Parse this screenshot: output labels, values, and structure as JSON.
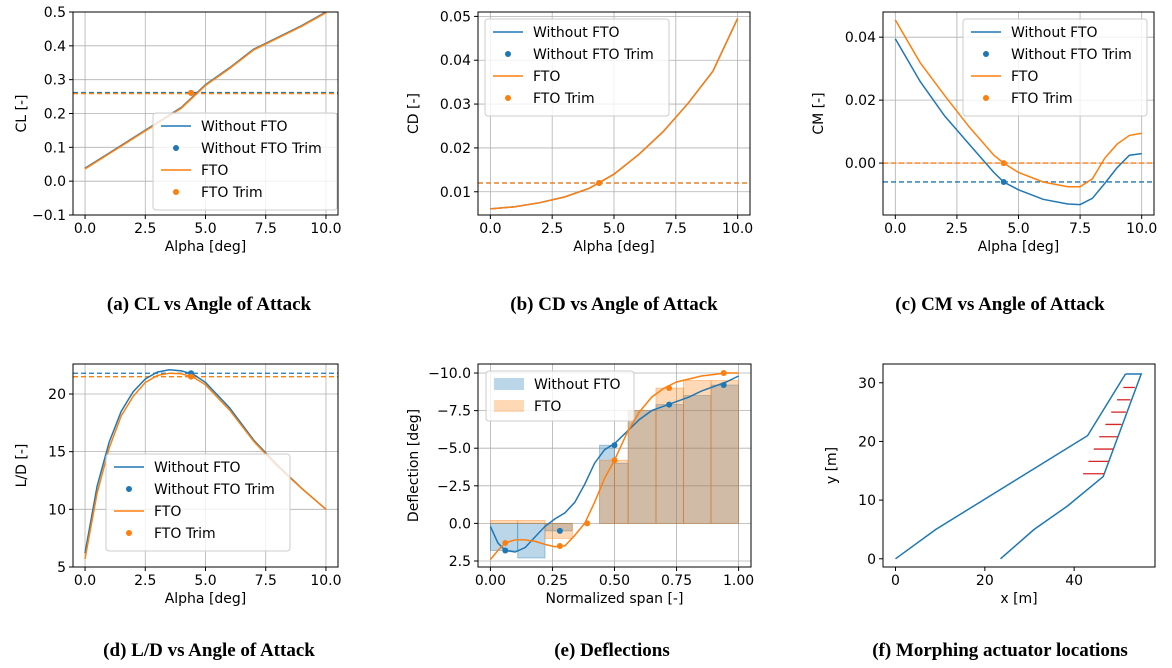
{
  "colors": {
    "without_fto": "#1f77b4",
    "fto": "#ff7f0e",
    "grid": "#b0b0b0",
    "actuator": "#d62728"
  },
  "captions": [
    "(a) CL vs Angle of Attack",
    "(b) CD vs Angle of Attack",
    "(c) CM vs Angle of Attack",
    "(d) L/D vs Angle of Attack",
    "(e) Deflections",
    "(f) Morphing actuator locations"
  ],
  "chart_data": [
    {
      "id": "a",
      "type": "line",
      "xlabel": "Alpha [deg]",
      "ylabel": "CL [-]",
      "xlim": [
        -0.5,
        10.5
      ],
      "ylim": [
        -0.1,
        0.5
      ],
      "xticks": [
        "0.0",
        "2.5",
        "5.0",
        "7.5",
        "10.0"
      ],
      "yticks": [
        "−0.1",
        "0.0",
        "0.1",
        "0.2",
        "0.3",
        "0.4",
        "0.5"
      ],
      "grid": true,
      "legend": "bottom-center",
      "series": [
        {
          "name": "Without FTO",
          "x": [
            0,
            1,
            2,
            3,
            4,
            5,
            6,
            7,
            8,
            9,
            10
          ],
          "y": [
            0.038,
            0.083,
            0.128,
            0.173,
            0.218,
            0.285,
            0.335,
            0.39,
            0.425,
            0.46,
            0.5
          ]
        },
        {
          "name": "FTO",
          "x": [
            0,
            1,
            2,
            3,
            4,
            5,
            6,
            7,
            8,
            9,
            10
          ],
          "y": [
            0.036,
            0.081,
            0.126,
            0.171,
            0.216,
            0.283,
            0.333,
            0.388,
            0.423,
            0.458,
            0.498
          ]
        }
      ],
      "trim_points": [
        {
          "name": "Without FTO Trim",
          "x": 4.4,
          "y": 0.261
        },
        {
          "name": "FTO Trim",
          "x": 4.4,
          "y": 0.261
        }
      ],
      "reference_lines": [
        {
          "series": "Without FTO",
          "y": 0.262
        },
        {
          "series": "FTO",
          "y": 0.259
        }
      ]
    },
    {
      "id": "b",
      "type": "line",
      "xlabel": "Alpha [deg]",
      "ylabel": "CD [-]",
      "xlim": [
        -0.5,
        10.5
      ],
      "ylim": [
        0.0047,
        0.051
      ],
      "xticks": [
        "0.0",
        "2.5",
        "5.0",
        "7.5",
        "10.0"
      ],
      "yticks": [
        "0.01",
        "0.02",
        "0.03",
        "0.04",
        "0.05"
      ],
      "grid": true,
      "legend": "top-left",
      "series": [
        {
          "name": "Without FTO",
          "x": [
            0,
            1,
            2,
            3,
            4,
            5,
            6,
            7,
            8,
            9,
            10
          ],
          "y": [
            0.0061,
            0.0066,
            0.0075,
            0.0088,
            0.0108,
            0.014,
            0.0185,
            0.0238,
            0.0302,
            0.0375,
            0.0495
          ]
        },
        {
          "name": "FTO",
          "x": [
            0,
            1,
            2,
            3,
            4,
            5,
            6,
            7,
            8,
            9,
            10
          ],
          "y": [
            0.0061,
            0.0066,
            0.0075,
            0.0088,
            0.0108,
            0.014,
            0.0185,
            0.0238,
            0.0302,
            0.0375,
            0.0495
          ]
        }
      ],
      "trim_points": [
        {
          "name": "Without FTO Trim",
          "x": 4.4,
          "y": 0.012
        },
        {
          "name": "FTO Trim",
          "x": 4.4,
          "y": 0.012
        }
      ],
      "reference_lines": [
        {
          "series": "Without FTO",
          "y": 0.012
        },
        {
          "series": "FTO",
          "y": 0.012
        }
      ]
    },
    {
      "id": "c",
      "type": "line",
      "xlabel": "Alpha [deg]",
      "ylabel": "CM [-]",
      "xlim": [
        -0.5,
        10.5
      ],
      "ylim": [
        -0.0165,
        0.048
      ],
      "xticks": [
        "0.0",
        "2.5",
        "5.0",
        "7.5",
        "10.0"
      ],
      "yticks": [
        "0.00",
        "0.02",
        "0.04"
      ],
      "grid": true,
      "legend": "top-right",
      "series": [
        {
          "name": "Without FTO",
          "x": [
            0,
            1,
            2,
            3,
            4,
            4.4,
            5,
            6,
            7,
            7.5,
            8,
            8.5,
            9,
            9.5,
            10
          ],
          "y": [
            0.0395,
            0.026,
            0.015,
            0.006,
            -0.003,
            -0.006,
            -0.0085,
            -0.0115,
            -0.013,
            -0.0132,
            -0.0112,
            -0.0065,
            -0.0015,
            0.0025,
            0.003
          ]
        },
        {
          "name": "FTO",
          "x": [
            0,
            1,
            2,
            3,
            4,
            4.4,
            5,
            6,
            7,
            7.5,
            8,
            8.5,
            9,
            9.5,
            10
          ],
          "y": [
            0.0455,
            0.032,
            0.0215,
            0.0115,
            0.0025,
            0.0,
            -0.003,
            -0.006,
            -0.0075,
            -0.0075,
            -0.005,
            0.0015,
            0.006,
            0.0088,
            0.0095
          ]
        }
      ],
      "trim_points": [
        {
          "name": "Without FTO Trim",
          "x": 4.4,
          "y": -0.006
        },
        {
          "name": "FTO Trim",
          "x": 4.4,
          "y": 0.0
        }
      ],
      "reference_lines": [
        {
          "series": "Without FTO",
          "y": -0.006
        },
        {
          "series": "FTO",
          "y": 0.0
        }
      ]
    },
    {
      "id": "d",
      "type": "line",
      "xlabel": "Alpha [deg]",
      "ylabel": "L/D [-]",
      "xlim": [
        -0.5,
        10.5
      ],
      "ylim": [
        5,
        22.6
      ],
      "xticks": [
        "0.0",
        "2.5",
        "5.0",
        "7.5",
        "10.0"
      ],
      "yticks": [
        "5",
        "10",
        "15",
        "20"
      ],
      "grid": true,
      "legend": "bottom-center",
      "series": [
        {
          "name": "Without FTO",
          "x": [
            0,
            0.5,
            1,
            1.5,
            2,
            2.5,
            3,
            3.5,
            4,
            4.5,
            5,
            6,
            7,
            8,
            9,
            10
          ],
          "y": [
            6.2,
            12.0,
            15.8,
            18.5,
            20.2,
            21.3,
            21.9,
            22.1,
            22.0,
            21.7,
            21.0,
            18.8,
            16.0,
            13.8,
            11.8,
            10.0
          ]
        },
        {
          "name": "FTO",
          "x": [
            0,
            0.5,
            1,
            1.5,
            2,
            2.5,
            3,
            3.5,
            4,
            4.5,
            5,
            6,
            7,
            8,
            9,
            10
          ],
          "y": [
            5.7,
            11.4,
            15.3,
            18.1,
            19.8,
            21.0,
            21.6,
            21.8,
            21.75,
            21.45,
            20.8,
            18.6,
            15.9,
            13.7,
            11.8,
            10.0
          ]
        }
      ],
      "trim_points": [
        {
          "name": "Without FTO Trim",
          "x": 4.4,
          "y": 21.8
        },
        {
          "name": "FTO Trim",
          "x": 4.4,
          "y": 21.5
        }
      ],
      "reference_lines": [
        {
          "series": "Without FTO",
          "y": 21.8
        },
        {
          "series": "FTO",
          "y": 21.5
        }
      ]
    },
    {
      "id": "e",
      "type": "bar",
      "xlabel": "Normalized span [-]",
      "ylabel": "Deflection [deg]",
      "xlim": [
        -0.05,
        1.05
      ],
      "ylim": [
        2.9,
        -10.6
      ],
      "xticks": [
        "0.00",
        "0.25",
        "0.50",
        "0.75",
        "1.00"
      ],
      "yticks": [
        "−10.0",
        "−7.5",
        "−5.0",
        "−2.5",
        "0.0",
        "2.5"
      ],
      "grid": true,
      "legend": "top-left",
      "series": [
        {
          "name": "Without FTO",
          "bars": [
            {
              "x0": 0.0,
              "x1": 0.11,
              "y": 1.8
            },
            {
              "x0": 0.11,
              "x1": 0.22,
              "y": 2.3
            },
            {
              "x0": 0.22,
              "x1": 0.33,
              "y": 0.5
            },
            {
              "x0": 0.44,
              "x1": 0.5,
              "y": -5.2
            },
            {
              "x0": 0.5,
              "x1": 0.555,
              "y": -4.0
            },
            {
              "x0": 0.555,
              "x1": 0.667,
              "y": -7.5
            },
            {
              "x0": 0.667,
              "x1": 0.778,
              "y": -7.9
            },
            {
              "x0": 0.778,
              "x1": 0.889,
              "y": -8.5
            },
            {
              "x0": 0.889,
              "x1": 1.0,
              "y": -9.2
            }
          ],
          "curve": {
            "x": [
              0.0,
              0.03,
              0.06,
              0.1,
              0.14,
              0.18,
              0.22,
              0.26,
              0.3,
              0.34,
              0.38,
              0.42,
              0.46,
              0.5,
              0.55,
              0.6,
              0.65,
              0.7,
              0.75,
              0.8,
              0.85,
              0.9,
              0.95,
              1.0
            ],
            "y": [
              0.2,
              1.3,
              1.8,
              1.9,
              1.6,
              0.9,
              0.2,
              -0.3,
              -0.7,
              -1.4,
              -2.6,
              -4.0,
              -4.9,
              -5.3,
              -6.1,
              -6.9,
              -7.5,
              -7.8,
              -8.1,
              -8.4,
              -8.8,
              -9.1,
              -9.4,
              -9.8
            ]
          },
          "points": [
            {
              "x": 0.06,
              "y": 1.8
            },
            {
              "x": 0.28,
              "y": 0.5
            },
            {
              "x": 0.5,
              "y": -5.2
            },
            {
              "x": 0.72,
              "y": -7.9
            },
            {
              "x": 0.94,
              "y": -9.2
            }
          ]
        },
        {
          "name": "FTO",
          "bars": [
            {
              "x0": 0.0,
              "x1": 0.11,
              "y": -0.2
            },
            {
              "x0": 0.11,
              "x1": 0.22,
              "y": -0.2
            },
            {
              "x0": 0.22,
              "x1": 0.33,
              "y": 1.0
            },
            {
              "x0": 0.33,
              "x1": 0.44,
              "y": 0.0
            },
            {
              "x0": 0.44,
              "x1": 0.5,
              "y": -4.2
            },
            {
              "x0": 0.5,
              "x1": 0.555,
              "y": -4.2
            },
            {
              "x0": 0.555,
              "x1": 0.667,
              "y": -7.5
            },
            {
              "x0": 0.667,
              "x1": 0.778,
              "y": -9.0
            },
            {
              "x0": 0.778,
              "x1": 0.889,
              "y": -9.5
            },
            {
              "x0": 0.889,
              "x1": 1.0,
              "y": -9.5
            }
          ],
          "curve": {
            "x": [
              0.0,
              0.03,
              0.06,
              0.1,
              0.14,
              0.18,
              0.22,
              0.26,
              0.3,
              0.34,
              0.38,
              0.42,
              0.46,
              0.5,
              0.55,
              0.6,
              0.65,
              0.7,
              0.75,
              0.8,
              0.85,
              0.9,
              0.95,
              1.0
            ],
            "y": [
              2.4,
              1.8,
              1.3,
              1.1,
              1.1,
              1.2,
              1.4,
              1.55,
              1.5,
              0.8,
              0.0,
              -1.4,
              -3.0,
              -4.2,
              -6.0,
              -7.4,
              -8.4,
              -9.0,
              -9.4,
              -9.6,
              -9.8,
              -9.9,
              -10.0,
              -10.0
            ]
          },
          "points": [
            {
              "x": 0.06,
              "y": 1.3
            },
            {
              "x": 0.28,
              "y": 1.5
            },
            {
              "x": 0.39,
              "y": 0.0
            },
            {
              "x": 0.5,
              "y": -4.2
            },
            {
              "x": 0.72,
              "y": -9.0
            },
            {
              "x": 0.94,
              "y": -10.0
            }
          ]
        }
      ]
    },
    {
      "id": "f",
      "type": "line",
      "xlabel": "x [m]",
      "ylabel": "y [m]",
      "xlim": [
        -2.8,
        58.1
      ],
      "ylim": [
        -1.4,
        33.2
      ],
      "xticks": [
        "0",
        "20",
        "40"
      ],
      "yticks": [
        "0",
        "10",
        "20",
        "30"
      ],
      "grid": false,
      "outline": {
        "leading_edge": [
          [
            0,
            0
          ],
          [
            9,
            5
          ],
          [
            43,
            21
          ],
          [
            51.5,
            31.5
          ]
        ],
        "trailing_edge": [
          [
            23.5,
            0
          ],
          [
            31,
            5
          ],
          [
            38.5,
            9
          ],
          [
            46.5,
            14
          ],
          [
            55,
            31.5
          ],
          [
            51.5,
            31.5
          ]
        ]
      },
      "actuators": [
        {
          "y": 14.5,
          "x0": 42,
          "x1": 46.7
        },
        {
          "y": 16.6,
          "x0": 43.2,
          "x1": 47.7
        },
        {
          "y": 18.7,
          "x0": 44.4,
          "x1": 48.7
        },
        {
          "y": 20.8,
          "x0": 45.6,
          "x1": 49.7
        },
        {
          "y": 22.9,
          "x0": 47.0,
          "x1": 50.6
        },
        {
          "y": 25.0,
          "x0": 48.3,
          "x1": 51.6
        },
        {
          "y": 27.1,
          "x0": 49.6,
          "x1": 52.6
        },
        {
          "y": 29.2,
          "x0": 51.0,
          "x1": 53.6
        }
      ]
    }
  ]
}
